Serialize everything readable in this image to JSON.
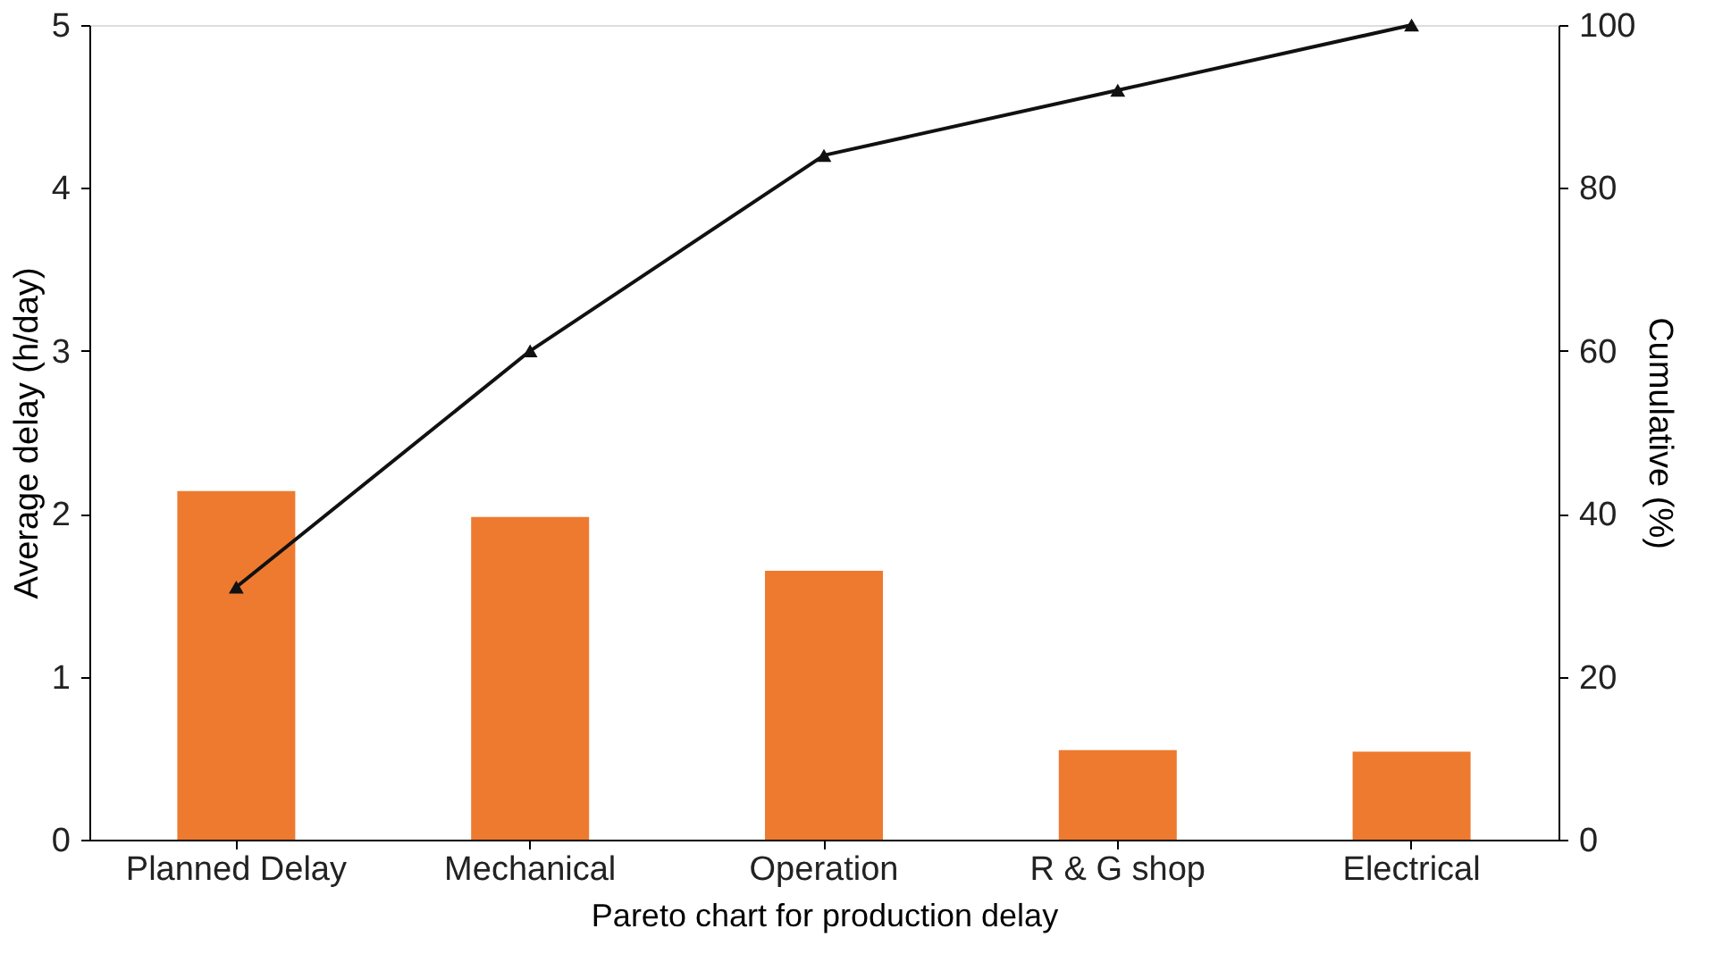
{
  "chart_data": {
    "type": "bar",
    "xlabel": "Pareto chart for production delay",
    "ylabel": "Average delay (h/day)",
    "y2label": "Cumulative (%)",
    "categories": [
      "Planned Delay",
      "Mechanical",
      "Operation",
      "R & G shop",
      "Electrical"
    ],
    "series": [
      {
        "color": "#ee7a30",
        "values": [
          2.14,
          1.98,
          1.65,
          0.55,
          0.54
        ]
      },
      {
        "type": "line",
        "axis": "y2",
        "color": "#111111",
        "marker": "triangle",
        "values": [
          31,
          60,
          84,
          92,
          100
        ]
      }
    ],
    "ylim": [
      0,
      5
    ],
    "yticks": [
      0,
      1,
      2,
      3,
      4,
      5
    ],
    "y2lim": [
      0,
      100
    ],
    "y2ticks": [
      0,
      20,
      40,
      60,
      80,
      100
    ],
    "grid": false
  }
}
